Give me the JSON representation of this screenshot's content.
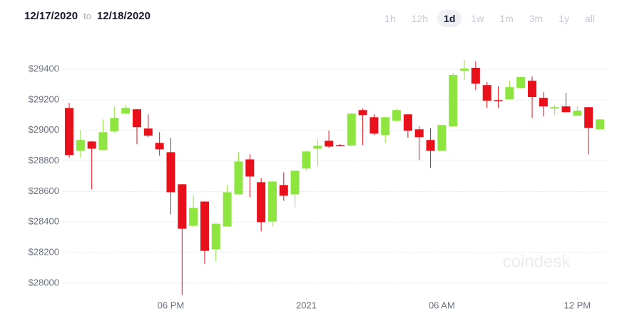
{
  "header": {
    "from": "12/17/2020",
    "separator": "to",
    "to": "12/18/2020",
    "ranges": [
      "1h",
      "12h",
      "1d",
      "1w",
      "1m",
      "3m",
      "1y",
      "all"
    ],
    "selected": "1d"
  },
  "watermark": "coindesk",
  "chart_data": {
    "type": "candlestick",
    "up_color": "#8ee53f",
    "down_color": "#e8101a",
    "categories": [
      null,
      null,
      null,
      null,
      null,
      null,
      null,
      null,
      null,
      null,
      null,
      null,
      null,
      null,
      null,
      null,
      null,
      null,
      null,
      null,
      null,
      null,
      null,
      null,
      null,
      null,
      null,
      null,
      null,
      null,
      null,
      null,
      null,
      null,
      null,
      null,
      null,
      null,
      null,
      null,
      null,
      null,
      null,
      null,
      null,
      null,
      null,
      null
    ],
    "open": [
      29147,
      28866,
      28927,
      28871,
      28993,
      29110,
      29138,
      29012,
      28918,
      28857,
      28647,
      28375,
      28534,
      28221,
      28370,
      28581,
      28810,
      28661,
      28403,
      28642,
      28581,
      28750,
      28880,
      28932,
      28905,
      28900,
      29133,
      29086,
      28970,
      29063,
      29105,
      29007,
      28937,
      28866,
      29026,
      29391,
      29410,
      29297,
      29198,
      29203,
      29278,
      29325,
      29213,
      29143,
      29157,
      29096,
      29152,
      29007
    ],
    "high": [
      29180,
      29002,
      28930,
      29072,
      29157,
      29166,
      29140,
      29105,
      28988,
      28951,
      28650,
      28576,
      28535,
      28390,
      28642,
      28857,
      28843,
      28689,
      28670,
      28726,
      28737,
      28863,
      28942,
      28998,
      28910,
      29112,
      29143,
      29105,
      29087,
      29143,
      29106,
      29026,
      29016,
      29036,
      29377,
      29461,
      29451,
      29316,
      29288,
      29325,
      29351,
      29353,
      29250,
      29166,
      29246,
      29157,
      29153,
      29073
    ],
    "low": [
      28820,
      28820,
      28614,
      28870,
      28983,
      29105,
      28909,
      28956,
      28834,
      28450,
      27921,
      28366,
      28127,
      28141,
      28370,
      28580,
      28562,
      28338,
      28370,
      28539,
      28497,
      28735,
      28764,
      28885,
      28895,
      28898,
      28904,
      28970,
      28918,
      29054,
      28951,
      28806,
      28754,
      28865,
      29025,
      29330,
      29264,
      29147,
      29147,
      29202,
      29274,
      29082,
      29091,
      29100,
      29118,
      29095,
      28843,
      29006
    ],
    "close": [
      28838,
      28937,
      28880,
      28988,
      29082,
      29147,
      29021,
      28965,
      28876,
      28595,
      28356,
      28492,
      28211,
      28389,
      28595,
      28796,
      28698,
      28399,
      28665,
      28572,
      28736,
      28862,
      28899,
      28894,
      28900,
      29110,
      29100,
      28979,
      29086,
      29133,
      28998,
      28955,
      28866,
      29035,
      29363,
      29405,
      29306,
      29194,
      29190,
      29283,
      29349,
      29218,
      29157,
      29152,
      29119,
      29129,
      29016,
      29072
    ],
    "ylim": [
      27920,
      29480
    ],
    "yticks": [
      {
        "value": 28000,
        "label": "$28000"
      },
      {
        "value": 28200,
        "label": "$28200"
      },
      {
        "value": 28400,
        "label": "$28400"
      },
      {
        "value": 28600,
        "label": "$28600"
      },
      {
        "value": 28800,
        "label": "$28800"
      },
      {
        "value": 29000,
        "label": "$29000"
      },
      {
        "value": 29200,
        "label": "$29200"
      },
      {
        "value": 29400,
        "label": "$29400"
      }
    ],
    "xticks": [
      {
        "value": 9,
        "label": "06 PM"
      },
      {
        "value": 21,
        "label": "2021"
      },
      {
        "value": 33,
        "label": "06 AM"
      },
      {
        "value": 45,
        "label": "12 PM"
      }
    ],
    "grid": true
  }
}
